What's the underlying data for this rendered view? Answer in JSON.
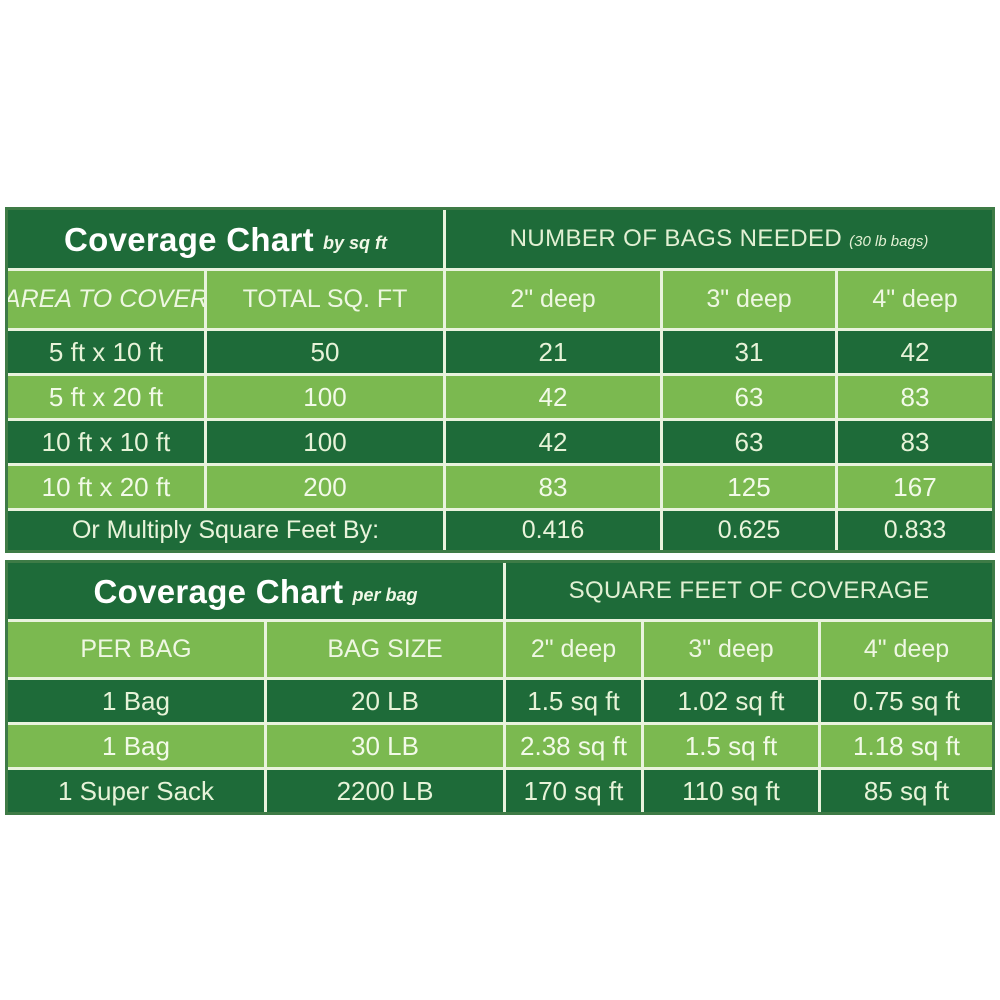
{
  "colors": {
    "dark_green": "#1e6b39",
    "light_green": "#7bb950",
    "outer_border": "#3e7b46",
    "separator": "#e9f3dd",
    "title_text": "#ffffff",
    "cell_text_on_dark": "#e7f3d8",
    "cell_text_on_light": "#f2fae8"
  },
  "chart_data": [
    {
      "type": "table",
      "title": "Coverage Chart",
      "title_note": "by sq ft",
      "right_header": "NUMBER OF BAGS NEEDED",
      "right_header_note": "(30 lb bags)",
      "columns": [
        "AREA TO COVER",
        "TOTAL SQ. FT",
        "2\" deep",
        "3\" deep",
        "4\" deep"
      ],
      "rows": [
        [
          "5 ft x 10 ft",
          "50",
          "21",
          "31",
          "42"
        ],
        [
          "5 ft x 20 ft",
          "100",
          "42",
          "63",
          "83"
        ],
        [
          "10 ft x 10 ft",
          "100",
          "42",
          "63",
          "83"
        ],
        [
          "10 ft x 20 ft",
          "200",
          "83",
          "125",
          "167"
        ]
      ],
      "footer_label": "Or Multiply Square Feet By:",
      "footer_values": [
        "0.416",
        "0.625",
        "0.833"
      ]
    },
    {
      "type": "table",
      "title": "Coverage Chart",
      "title_note": "per bag",
      "right_header": "SQUARE FEET OF COVERAGE",
      "columns": [
        "PER BAG",
        "BAG SIZE",
        "2\" deep",
        "3\" deep",
        "4\" deep"
      ],
      "rows": [
        [
          "1 Bag",
          "20 LB",
          "1.5 sq ft",
          "1.02 sq ft",
          "0.75 sq ft"
        ],
        [
          "1 Bag",
          "30 LB",
          "2.38 sq ft",
          "1.5 sq ft",
          "1.18 sq ft"
        ],
        [
          "1 Super Sack",
          "2200 LB",
          "170 sq ft",
          "110 sq ft",
          "85 sq ft"
        ]
      ]
    }
  ]
}
